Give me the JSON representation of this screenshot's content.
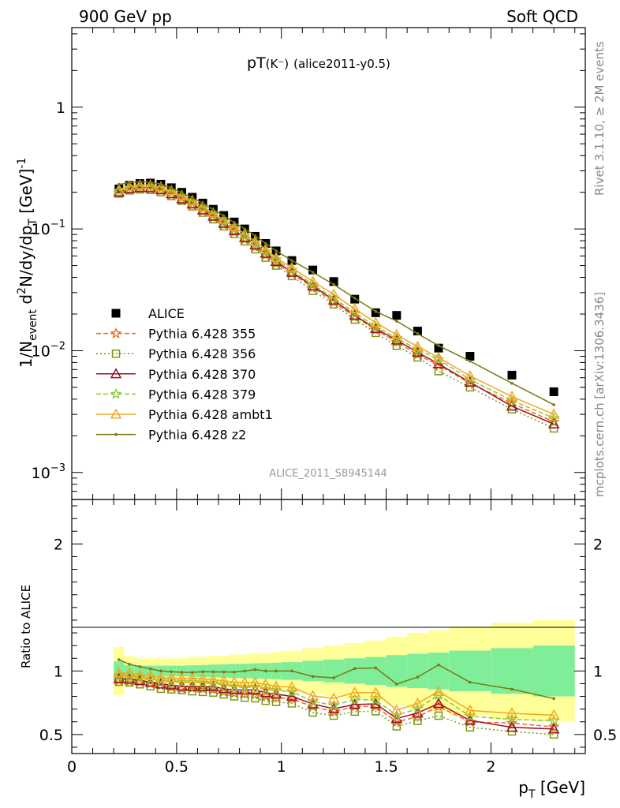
{
  "header": {
    "left": "900 GeV pp",
    "right": "Soft QCD"
  },
  "side_labels": {
    "top": "Rivet 3.1.10, ≥ 2M events",
    "bottom": "mcplots.cern.ch [arXiv:1306.3436]"
  },
  "chart_data": [
    {
      "type": "scatter",
      "title": "pT(K⁻) (alice2011-y0.5)",
      "title_main": "pT",
      "title_sub": "(K⁻)",
      "title_tail": "(alice2011-y0.5)",
      "ylabel": "1/N_event d²N/dy/dp_T [GeV]⁻¹",
      "ylabel_parts": {
        "a": "1/N",
        "b": "event",
        "c": " d",
        "d": "2",
        "e": "N/dy/dp",
        "f": "T",
        "g": " [GeV]",
        "h": "-1"
      },
      "yscale": "log",
      "ylim": [
        0.0006,
        4.5
      ],
      "xlim": [
        0,
        2.45
      ],
      "ytick_labels": [
        {
          "value": 1,
          "base": "1",
          "exp": ""
        },
        {
          "value": 0.1,
          "base": "10",
          "exp": "−1"
        },
        {
          "value": 0.01,
          "base": "10",
          "exp": "−2"
        },
        {
          "value": 0.001,
          "base": "10",
          "exp": "−3"
        }
      ],
      "watermark": "ALICE_2011_S8945144",
      "legend_position": "left-middle",
      "x": [
        0.225,
        0.275,
        0.325,
        0.375,
        0.425,
        0.475,
        0.525,
        0.575,
        0.625,
        0.675,
        0.725,
        0.775,
        0.825,
        0.875,
        0.925,
        0.975,
        1.05,
        1.15,
        1.25,
        1.35,
        1.45,
        1.55,
        1.65,
        1.75,
        1.9,
        2.1,
        2.3
      ],
      "series": [
        {
          "name": "ALICE",
          "color": "#000000",
          "marker": "square",
          "values": [
            0.213,
            0.228,
            0.236,
            0.238,
            0.233,
            0.218,
            0.2,
            0.182,
            0.163,
            0.145,
            0.129,
            0.114,
            0.1,
            0.087,
            0.076,
            0.066,
            0.055,
            0.046,
            0.037,
            0.0265,
            0.0205,
            0.0195,
            0.0145,
            0.0105,
            0.009,
            0.0063,
            0.0046
          ]
        },
        {
          "name": "Pythia 6.428 355",
          "color": "#f06a20",
          "marker": "star",
          "dash": "6,3",
          "values": [
            0.197,
            0.21,
            0.215,
            0.214,
            0.206,
            0.19,
            0.172,
            0.157,
            0.14,
            0.124,
            0.108,
            0.094,
            0.082,
            0.071,
            0.061,
            0.052,
            0.043,
            0.033,
            0.025,
            0.019,
            0.0148,
            0.0118,
            0.0093,
            0.0076,
            0.0054,
            0.0037,
            0.0026
          ]
        },
        {
          "name": "Pythia 6.428 356",
          "color": "#7a9a10",
          "marker": "opensquare",
          "dash": "2,3",
          "values": [
            0.195,
            0.207,
            0.211,
            0.209,
            0.2,
            0.186,
            0.17,
            0.153,
            0.136,
            0.12,
            0.105,
            0.091,
            0.079,
            0.068,
            0.058,
            0.05,
            0.041,
            0.031,
            0.024,
            0.018,
            0.014,
            0.011,
            0.0088,
            0.0068,
            0.005,
            0.0033,
            0.0023
          ]
        },
        {
          "name": "Pythia 6.428 370",
          "color": "#9b1025",
          "marker": "triangle",
          "dash": "",
          "values": [
            0.2,
            0.213,
            0.218,
            0.217,
            0.209,
            0.194,
            0.176,
            0.16,
            0.143,
            0.127,
            0.111,
            0.097,
            0.085,
            0.074,
            0.063,
            0.054,
            0.044,
            0.034,
            0.026,
            0.0195,
            0.0152,
            0.0122,
            0.0097,
            0.0078,
            0.0055,
            0.0035,
            0.0025
          ]
        },
        {
          "name": "Pythia 6.428 379",
          "color": "#8cc63f",
          "marker": "star",
          "dash": "6,3",
          "values": [
            0.205,
            0.218,
            0.223,
            0.223,
            0.215,
            0.2,
            0.182,
            0.166,
            0.148,
            0.131,
            0.115,
            0.1,
            0.087,
            0.076,
            0.065,
            0.056,
            0.046,
            0.035,
            0.027,
            0.0205,
            0.0158,
            0.0127,
            0.0102,
            0.0085,
            0.0058,
            0.0039,
            0.0028
          ]
        },
        {
          "name": "Pythia 6.428 ambt1",
          "color": "#f0a820",
          "marker": "opentriangle",
          "dash": "",
          "values": [
            0.21,
            0.224,
            0.229,
            0.229,
            0.221,
            0.206,
            0.188,
            0.171,
            0.153,
            0.135,
            0.119,
            0.104,
            0.091,
            0.079,
            0.068,
            0.058,
            0.048,
            0.037,
            0.029,
            0.022,
            0.017,
            0.0135,
            0.0108,
            0.0088,
            0.0062,
            0.0042,
            0.003
          ]
        },
        {
          "name": "Pythia 6.428 z2",
          "color": "#7a7a10",
          "marker": "dot",
          "dash": "",
          "values": [
            0.232,
            0.24,
            0.244,
            0.242,
            0.233,
            0.217,
            0.198,
            0.18,
            0.162,
            0.144,
            0.128,
            0.113,
            0.1,
            0.088,
            0.076,
            0.066,
            0.055,
            0.044,
            0.035,
            0.027,
            0.021,
            0.0175,
            0.0138,
            0.011,
            0.0082,
            0.0054,
            0.0036
          ]
        }
      ]
    },
    {
      "type": "line",
      "ylabel": "Ratio to ALICE",
      "xlabel": "p_T [GeV]",
      "xlabel_parts": {
        "a": "p",
        "b": "T",
        "c": " [GeV]"
      },
      "ylim": [
        0.35,
        2.35
      ],
      "xlim": [
        0,
        2.45
      ],
      "yticks": [
        0.5,
        1,
        2
      ],
      "ytick_labels": [
        "0.5",
        "1",
        "2"
      ],
      "xticks": [
        0,
        0.5,
        1,
        1.5,
        2
      ],
      "xtick_labels": [
        "0",
        "0.5",
        "1",
        "1.5",
        "2"
      ],
      "bins": [
        [
          0.2,
          0.25
        ],
        [
          0.25,
          0.3
        ],
        [
          0.3,
          0.35
        ],
        [
          0.35,
          0.4
        ],
        [
          0.4,
          0.45
        ],
        [
          0.45,
          0.5
        ],
        [
          0.5,
          0.55
        ],
        [
          0.55,
          0.6
        ],
        [
          0.6,
          0.65
        ],
        [
          0.65,
          0.7
        ],
        [
          0.7,
          0.75
        ],
        [
          0.75,
          0.8
        ],
        [
          0.8,
          0.85
        ],
        [
          0.85,
          0.9
        ],
        [
          0.9,
          0.95
        ],
        [
          0.95,
          1.0
        ],
        [
          1.0,
          1.1
        ],
        [
          1.1,
          1.2
        ],
        [
          1.2,
          1.3
        ],
        [
          1.3,
          1.4
        ],
        [
          1.4,
          1.5
        ],
        [
          1.5,
          1.6
        ],
        [
          1.6,
          1.7
        ],
        [
          1.7,
          1.8
        ],
        [
          1.8,
          2.0
        ],
        [
          2.0,
          2.2
        ],
        [
          2.2,
          2.4
        ]
      ],
      "band_inner": [
        0.075,
        0.045,
        0.042,
        0.042,
        0.042,
        0.042,
        0.042,
        0.045,
        0.047,
        0.05,
        0.052,
        0.055,
        0.057,
        0.06,
        0.062,
        0.065,
        0.07,
        0.08,
        0.09,
        0.1,
        0.11,
        0.125,
        0.135,
        0.145,
        0.16,
        0.18,
        0.2
      ],
      "band_outer": [
        0.19,
        0.12,
        0.1,
        0.1,
        0.1,
        0.1,
        0.1,
        0.11,
        0.11,
        0.12,
        0.12,
        0.13,
        0.13,
        0.14,
        0.14,
        0.15,
        0.16,
        0.18,
        0.2,
        0.22,
        0.24,
        0.27,
        0.3,
        0.32,
        0.35,
        0.38,
        0.4
      ],
      "band_colors": {
        "inner": "#80ee99",
        "outer": "#ffff99"
      },
      "series": [
        {
          "name": "Pythia 6.428 355",
          "values": [
            0.925,
            0.92,
            0.91,
            0.9,
            0.885,
            0.87,
            0.86,
            0.865,
            0.86,
            0.855,
            0.835,
            0.825,
            0.82,
            0.815,
            0.8,
            0.79,
            0.78,
            0.72,
            0.68,
            0.72,
            0.72,
            0.6,
            0.64,
            0.72,
            0.6,
            0.59,
            0.56
          ]
        },
        {
          "name": "Pythia 6.428 356",
          "values": [
            0.915,
            0.91,
            0.895,
            0.88,
            0.86,
            0.855,
            0.85,
            0.84,
            0.835,
            0.83,
            0.815,
            0.8,
            0.79,
            0.785,
            0.765,
            0.757,
            0.745,
            0.673,
            0.648,
            0.68,
            0.683,
            0.564,
            0.607,
            0.648,
            0.556,
            0.524,
            0.5
          ]
        },
        {
          "name": "Pythia 6.428 370",
          "values": [
            0.94,
            0.935,
            0.925,
            0.912,
            0.897,
            0.89,
            0.88,
            0.879,
            0.877,
            0.876,
            0.86,
            0.851,
            0.85,
            0.851,
            0.829,
            0.818,
            0.8,
            0.74,
            0.703,
            0.736,
            0.741,
            0.626,
            0.669,
            0.743,
            0.611,
            0.556,
            0.543
          ]
        },
        {
          "name": "Pythia 6.428 379",
          "values": [
            0.962,
            0.956,
            0.945,
            0.937,
            0.923,
            0.917,
            0.91,
            0.912,
            0.908,
            0.903,
            0.891,
            0.877,
            0.87,
            0.874,
            0.855,
            0.848,
            0.836,
            0.761,
            0.73,
            0.774,
            0.771,
            0.651,
            0.703,
            0.81,
            0.644,
            0.619,
            0.609
          ]
        },
        {
          "name": "Pythia 6.428 ambt1",
          "values": [
            0.986,
            0.982,
            0.97,
            0.962,
            0.948,
            0.945,
            0.94,
            0.94,
            0.939,
            0.931,
            0.922,
            0.912,
            0.91,
            0.908,
            0.895,
            0.879,
            0.873,
            0.804,
            0.784,
            0.83,
            0.829,
            0.692,
            0.745,
            0.838,
            0.689,
            0.667,
            0.652
          ]
        },
        {
          "name": "Pythia 6.428 z2",
          "values": [
            1.089,
            1.053,
            1.034,
            1.017,
            1.0,
            0.995,
            0.99,
            0.989,
            0.994,
            0.993,
            0.992,
            0.991,
            1.0,
            1.011,
            1.0,
            1.0,
            1.0,
            0.957,
            0.946,
            1.019,
            1.024,
            0.897,
            0.952,
            1.048,
            0.911,
            0.857,
            0.783
          ]
        }
      ]
    }
  ]
}
